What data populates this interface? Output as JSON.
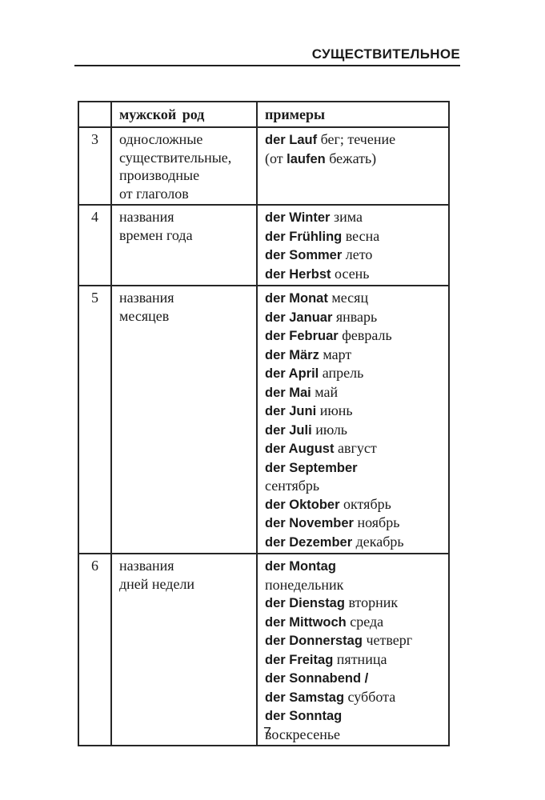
{
  "page": {
    "header_title": "СУЩЕСТВИТЕЛЬНОЕ",
    "page_number": "7"
  },
  "table": {
    "headers": [
      "",
      "мужской род",
      "примеры"
    ],
    "rows": [
      {
        "num": "3",
        "category": [
          "односложные",
          "существительные,",
          "производные",
          "от глаголов"
        ],
        "examples": [
          [
            {
              "t": "der Lauf",
              "b": 1
            },
            {
              "t": " бег; течение",
              "b": 0
            }
          ],
          [
            {
              "t": "(от ",
              "b": 0
            },
            {
              "t": "laufen",
              "b": 1
            },
            {
              "t": " бежать)",
              "b": 0
            }
          ]
        ]
      },
      {
        "num": "4",
        "category": [
          "названия",
          "времен года"
        ],
        "examples": [
          [
            {
              "t": "der Winter",
              "b": 1
            },
            {
              "t": " зима",
              "b": 0
            }
          ],
          [
            {
              "t": "der Frühling",
              "b": 1
            },
            {
              "t": " весна",
              "b": 0
            }
          ],
          [
            {
              "t": "der Sommer",
              "b": 1
            },
            {
              "t": " лето",
              "b": 0
            }
          ],
          [
            {
              "t": "der Herbst",
              "b": 1
            },
            {
              "t": " осень",
              "b": 0
            }
          ]
        ]
      },
      {
        "num": "5",
        "category": [
          "названия",
          "месяцев"
        ],
        "examples": [
          [
            {
              "t": "der Monat",
              "b": 1
            },
            {
              "t": " месяц",
              "b": 0
            }
          ],
          [
            {
              "t": "der Januar",
              "b": 1
            },
            {
              "t": " январь",
              "b": 0
            }
          ],
          [
            {
              "t": "der Februar",
              "b": 1
            },
            {
              "t": " февраль",
              "b": 0
            }
          ],
          [
            {
              "t": "der März",
              "b": 1
            },
            {
              "t": " март",
              "b": 0
            }
          ],
          [
            {
              "t": "der April",
              "b": 1
            },
            {
              "t": " апрель",
              "b": 0
            }
          ],
          [
            {
              "t": "der Mai",
              "b": 1
            },
            {
              "t": " май",
              "b": 0
            }
          ],
          [
            {
              "t": "der Juni",
              "b": 1
            },
            {
              "t": " июнь",
              "b": 0
            }
          ],
          [
            {
              "t": "der Juli",
              "b": 1
            },
            {
              "t": " июль",
              "b": 0
            }
          ],
          [
            {
              "t": "der August",
              "b": 1
            },
            {
              "t": " август",
              "b": 0
            }
          ],
          [
            {
              "t": "der September",
              "b": 1
            }
          ],
          [
            {
              "t": "сентябрь",
              "b": 0
            }
          ],
          [
            {
              "t": "der Oktober",
              "b": 1
            },
            {
              "t": " октябрь",
              "b": 0
            }
          ],
          [
            {
              "t": "der November",
              "b": 1
            },
            {
              "t": " ноябрь",
              "b": 0
            }
          ],
          [
            {
              "t": "der Dezember",
              "b": 1
            },
            {
              "t": " декабрь",
              "b": 0
            }
          ]
        ]
      },
      {
        "num": "6",
        "category": [
          "названия",
          "дней недели"
        ],
        "examples": [
          [
            {
              "t": "der Montag",
              "b": 1
            }
          ],
          [
            {
              "t": "понедельник",
              "b": 0
            }
          ],
          [
            {
              "t": "der Dienstag",
              "b": 1
            },
            {
              "t": " вторник",
              "b": 0
            }
          ],
          [
            {
              "t": "der Mittwoch",
              "b": 1
            },
            {
              "t": " среда",
              "b": 0
            }
          ],
          [
            {
              "t": "der Donnerstag",
              "b": 1
            },
            {
              "t": " четверг",
              "b": 0
            }
          ],
          [
            {
              "t": "der Freitag",
              "b": 1
            },
            {
              "t": " пятница",
              "b": 0
            }
          ],
          [
            {
              "t": "der Sonnabend /",
              "b": 1
            }
          ],
          [
            {
              "t": "der Samstag",
              "b": 1
            },
            {
              "t": " суббота",
              "b": 0
            }
          ],
          [
            {
              "t": "der Sonntag",
              "b": 1
            }
          ],
          [
            {
              "t": "воскресенье",
              "b": 0
            }
          ]
        ]
      }
    ]
  }
}
